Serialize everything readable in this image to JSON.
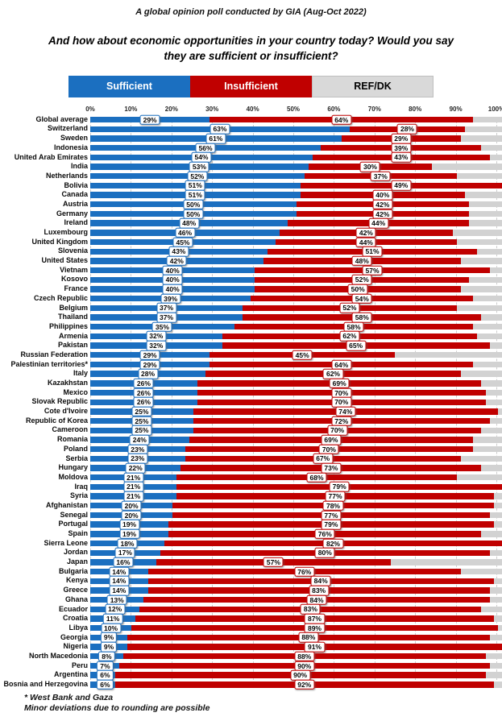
{
  "title": "A global opinion poll conducted by GIA (Aug-Oct 2022)",
  "question": "And how about economic opportunities in your country today?  Would you say they are sufficient or insufficient?",
  "legend": [
    {
      "label": "Sufficient",
      "color": "#1B6FC0",
      "text_color": "#FFFFFF"
    },
    {
      "label": "Insufficient",
      "color": "#C00000",
      "text_color": "#FFFFFF"
    },
    {
      "label": "REF/DK",
      "color": "#D9D9D9",
      "text_color": "#000000"
    }
  ],
  "footnotes": [
    "* West Bank and Gaza",
    "Minor deviations due to rounding are possible"
  ],
  "colors": {
    "sufficient": "#1B6FC0",
    "insufficient": "#C00000",
    "ref_dk": "#D2D2D2",
    "gridline": "#CCCCCC",
    "label_box_bg": "#FFFFFF"
  },
  "chart_data": {
    "type": "bar",
    "orientation": "horizontal-stacked",
    "stack_total": 100,
    "grid": true,
    "legend_position": "top",
    "series_names": [
      "Sufficient",
      "Insufficient",
      "REF/DK"
    ],
    "x_axis": {
      "min": 0,
      "max": 100,
      "tick_step": 10,
      "ticks": [
        "0%",
        "10%",
        "20%",
        "30%",
        "40%",
        "50%",
        "60%",
        "70%",
        "80%",
        "90%",
        "100%"
      ]
    },
    "rows": [
      {
        "country": "Global average",
        "sufficient": 29,
        "insufficient": 64,
        "ref_dk": 7
      },
      {
        "country": "Switzerland",
        "sufficient": 63,
        "insufficient": 28,
        "ref_dk": 9
      },
      {
        "country": "Sweden",
        "sufficient": 61,
        "insufficient": 29,
        "ref_dk": 10
      },
      {
        "country": "Indonesia",
        "sufficient": 56,
        "insufficient": 39,
        "ref_dk": 5
      },
      {
        "country": "United Arab Emirates",
        "sufficient": 54,
        "insufficient": 43,
        "ref_dk": 3
      },
      {
        "country": "India",
        "sufficient": 53,
        "insufficient": 30,
        "ref_dk": 17
      },
      {
        "country": "Netherlands",
        "sufficient": 52,
        "insufficient": 37,
        "ref_dk": 11
      },
      {
        "country": "Bolivia",
        "sufficient": 51,
        "insufficient": 49,
        "ref_dk": 0
      },
      {
        "country": "Canada",
        "sufficient": 51,
        "insufficient": 40,
        "ref_dk": 9
      },
      {
        "country": "Austria",
        "sufficient": 50,
        "insufficient": 42,
        "ref_dk": 8
      },
      {
        "country": "Germany",
        "sufficient": 50,
        "insufficient": 42,
        "ref_dk": 8
      },
      {
        "country": "Ireland",
        "sufficient": 48,
        "insufficient": 44,
        "ref_dk": 8
      },
      {
        "country": "Luxembourg",
        "sufficient": 46,
        "insufficient": 42,
        "ref_dk": 12
      },
      {
        "country": "United Kingdom",
        "sufficient": 45,
        "insufficient": 44,
        "ref_dk": 11
      },
      {
        "country": "Slovenia",
        "sufficient": 43,
        "insufficient": 51,
        "ref_dk": 6
      },
      {
        "country": "United States",
        "sufficient": 42,
        "insufficient": 48,
        "ref_dk": 10
      },
      {
        "country": "Vietnam",
        "sufficient": 40,
        "insufficient": 57,
        "ref_dk": 3
      },
      {
        "country": "Kosovo",
        "sufficient": 40,
        "insufficient": 52,
        "ref_dk": 8
      },
      {
        "country": "France",
        "sufficient": 40,
        "insufficient": 50,
        "ref_dk": 10
      },
      {
        "country": "Czech Republic",
        "sufficient": 39,
        "insufficient": 54,
        "ref_dk": 7
      },
      {
        "country": "Belgium",
        "sufficient": 37,
        "insufficient": 52,
        "ref_dk": 11
      },
      {
        "country": "Thailand",
        "sufficient": 37,
        "insufficient": 58,
        "ref_dk": 5
      },
      {
        "country": "Philippines",
        "sufficient": 35,
        "insufficient": 58,
        "ref_dk": 7
      },
      {
        "country": "Armenia",
        "sufficient": 32,
        "insufficient": 62,
        "ref_dk": 6
      },
      {
        "country": "Pakistan",
        "sufficient": 32,
        "insufficient": 65,
        "ref_dk": 3
      },
      {
        "country": "Russian Federation",
        "sufficient": 29,
        "insufficient": 45,
        "ref_dk": 26
      },
      {
        "country": "Palestinian territories*",
        "sufficient": 29,
        "insufficient": 64,
        "ref_dk": 7
      },
      {
        "country": "Italy",
        "sufficient": 28,
        "insufficient": 62,
        "ref_dk": 10
      },
      {
        "country": "Kazakhstan",
        "sufficient": 26,
        "insufficient": 69,
        "ref_dk": 5
      },
      {
        "country": "Mexico",
        "sufficient": 26,
        "insufficient": 70,
        "ref_dk": 4
      },
      {
        "country": "Slovak Republic",
        "sufficient": 26,
        "insufficient": 70,
        "ref_dk": 4
      },
      {
        "country": "Cote d'Ivoire",
        "sufficient": 25,
        "insufficient": 74,
        "ref_dk": 1
      },
      {
        "country": "Republic of Korea",
        "sufficient": 25,
        "insufficient": 72,
        "ref_dk": 3
      },
      {
        "country": "Cameroon",
        "sufficient": 25,
        "insufficient": 70,
        "ref_dk": 5
      },
      {
        "country": "Romania",
        "sufficient": 24,
        "insufficient": 69,
        "ref_dk": 7
      },
      {
        "country": "Poland",
        "sufficient": 23,
        "insufficient": 70,
        "ref_dk": 7
      },
      {
        "country": "Serbia",
        "sufficient": 23,
        "insufficient": 67,
        "ref_dk": 10
      },
      {
        "country": "Hungary",
        "sufficient": 22,
        "insufficient": 73,
        "ref_dk": 5
      },
      {
        "country": "Moldova",
        "sufficient": 21,
        "insufficient": 68,
        "ref_dk": 11
      },
      {
        "country": "Iraq",
        "sufficient": 21,
        "insufficient": 79,
        "ref_dk": 0
      },
      {
        "country": "Syria",
        "sufficient": 21,
        "insufficient": 77,
        "ref_dk": 2
      },
      {
        "country": "Afghanistan",
        "sufficient": 20,
        "insufficient": 78,
        "ref_dk": 2
      },
      {
        "country": "Senegal",
        "sufficient": 20,
        "insufficient": 77,
        "ref_dk": 3
      },
      {
        "country": "Portugal",
        "sufficient": 19,
        "insufficient": 79,
        "ref_dk": 2
      },
      {
        "country": "Spain",
        "sufficient": 19,
        "insufficient": 76,
        "ref_dk": 5
      },
      {
        "country": "Sierra Leone",
        "sufficient": 18,
        "insufficient": 82,
        "ref_dk": 0
      },
      {
        "country": "Jordan",
        "sufficient": 17,
        "insufficient": 80,
        "ref_dk": 3
      },
      {
        "country": "Japan",
        "sufficient": 16,
        "insufficient": 57,
        "ref_dk": 27
      },
      {
        "country": "Bulgaria",
        "sufficient": 14,
        "insufficient": 76,
        "ref_dk": 10
      },
      {
        "country": "Kenya",
        "sufficient": 14,
        "insufficient": 84,
        "ref_dk": 2
      },
      {
        "country": "Greece",
        "sufficient": 14,
        "insufficient": 83,
        "ref_dk": 3
      },
      {
        "country": "Ghana",
        "sufficient": 13,
        "insufficient": 84,
        "ref_dk": 3
      },
      {
        "country": "Ecuador",
        "sufficient": 12,
        "insufficient": 83,
        "ref_dk": 5
      },
      {
        "country": "Croatia",
        "sufficient": 11,
        "insufficient": 87,
        "ref_dk": 2
      },
      {
        "country": "Libya",
        "sufficient": 10,
        "insufficient": 89,
        "ref_dk": 1
      },
      {
        "country": "Georgia",
        "sufficient": 9,
        "insufficient": 88,
        "ref_dk": 3
      },
      {
        "country": "Nigeria",
        "sufficient": 9,
        "insufficient": 91,
        "ref_dk": 0
      },
      {
        "country": "North Macedonia",
        "sufficient": 8,
        "insufficient": 88,
        "ref_dk": 4
      },
      {
        "country": "Peru",
        "sufficient": 7,
        "insufficient": 90,
        "ref_dk": 3
      },
      {
        "country": "Argentina",
        "sufficient": 6,
        "insufficient": 90,
        "ref_dk": 4
      },
      {
        "country": "Bosnia and Herzegovina",
        "sufficient": 6,
        "insufficient": 92,
        "ref_dk": 2
      }
    ]
  }
}
